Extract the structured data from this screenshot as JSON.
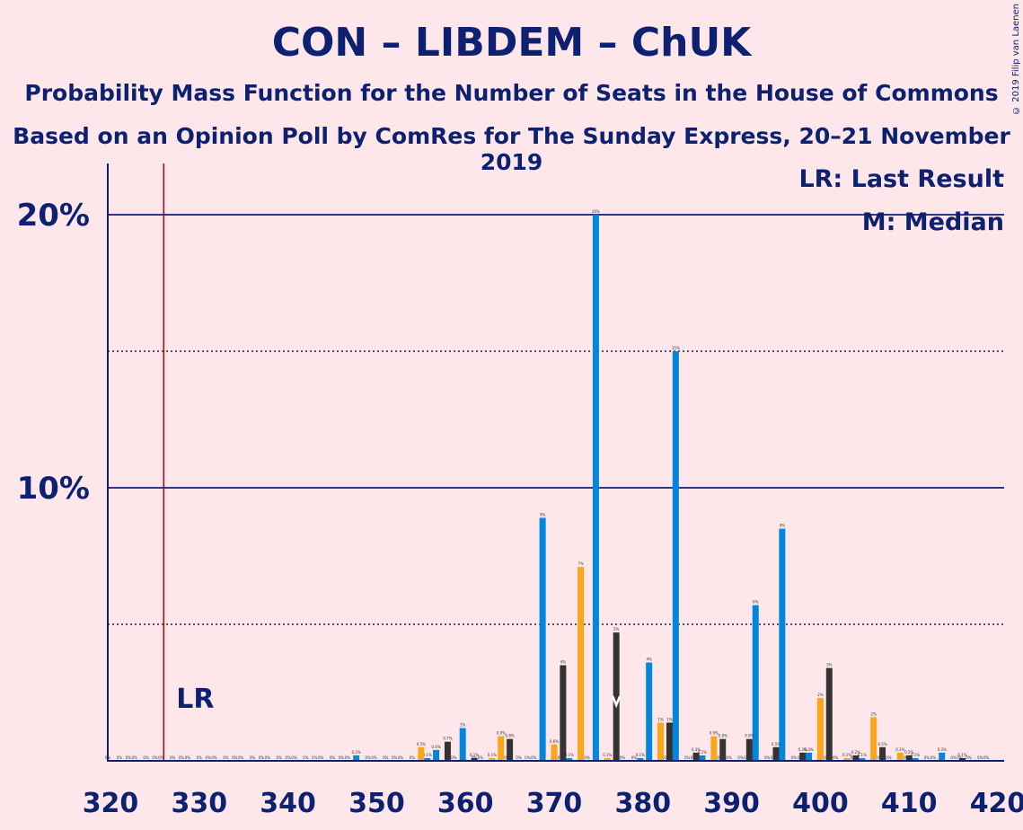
{
  "title": "CON – LIBDEM – ChUK",
  "subtitle": "Probability Mass Function for the Number of Seats in the House of Commons",
  "subtitle2": "Based on an Opinion Poll by ComRes for The Sunday Express, 20–21 November 2019",
  "copyright": "© 2019 Filip van Laenen",
  "legend": {
    "lr": "LR: Last Result",
    "median": "M: Median"
  },
  "colors": {
    "background": "#FDE7EA",
    "text": "#0D2170",
    "blue": "#0087DC",
    "orange": "#FAA61A",
    "dark": "#333333",
    "last_result": "#C00000"
  },
  "chart_data": {
    "type": "bar",
    "x_range": [
      320,
      420
    ],
    "y_range": [
      0,
      0.22
    ],
    "x_ticks": [
      320,
      330,
      340,
      350,
      360,
      370,
      380,
      390,
      400,
      410,
      420
    ],
    "y_ticks": [
      {
        "value": 0.1,
        "label": "10%"
      },
      {
        "value": 0.2,
        "label": "20%"
      }
    ],
    "dotted_gridlines": [
      0.05,
      0.15
    ],
    "last_result": {
      "seat": 326,
      "label": "LR"
    },
    "median": 377,
    "series": [
      {
        "color": "blue",
        "values": [
          [
            320,
            0
          ],
          [
            323,
            0
          ],
          [
            326,
            0
          ],
          [
            329,
            0
          ],
          [
            332,
            0
          ],
          [
            335,
            0
          ],
          [
            338,
            0
          ],
          [
            341,
            0
          ],
          [
            344,
            0
          ],
          [
            347,
            0
          ],
          [
            348,
            0.002
          ],
          [
            350,
            0
          ],
          [
            353,
            0
          ],
          [
            356,
            0.001
          ],
          [
            357,
            0.004
          ],
          [
            359,
            0
          ],
          [
            360,
            0.012
          ],
          [
            362,
            0
          ],
          [
            365,
            0
          ],
          [
            368,
            0
          ],
          [
            369,
            0.089
          ],
          [
            371,
            0
          ],
          [
            372,
            0.001
          ],
          [
            374,
            0
          ],
          [
            375,
            0.2
          ],
          [
            378,
            0
          ],
          [
            380,
            0.001
          ],
          [
            381,
            0.036
          ],
          [
            383,
            0
          ],
          [
            384,
            0.15
          ],
          [
            386,
            0
          ],
          [
            387,
            0.002
          ],
          [
            389,
            0
          ],
          [
            390,
            0
          ],
          [
            392,
            0
          ],
          [
            393,
            0.057
          ],
          [
            395,
            0
          ],
          [
            396,
            0.085
          ],
          [
            398,
            0
          ],
          [
            399,
            0.003
          ],
          [
            401,
            0
          ],
          [
            402,
            0
          ],
          [
            404,
            0
          ],
          [
            405,
            0.001
          ],
          [
            407,
            0
          ],
          [
            408,
            0
          ],
          [
            410,
            0
          ],
          [
            411,
            0.001
          ],
          [
            413,
            0
          ],
          [
            414,
            0.003
          ],
          [
            416,
            0
          ],
          [
            417,
            0
          ],
          [
            419,
            0
          ]
        ]
      },
      {
        "color": "orange",
        "values": [
          [
            321,
            0
          ],
          [
            324,
            0
          ],
          [
            327,
            0
          ],
          [
            330,
            0
          ],
          [
            333,
            0
          ],
          [
            336,
            0
          ],
          [
            339,
            0
          ],
          [
            342,
            0
          ],
          [
            345,
            0
          ],
          [
            349,
            0
          ],
          [
            351,
            0
          ],
          [
            354,
            0
          ],
          [
            355,
            0.005
          ],
          [
            358,
            0
          ],
          [
            361,
            0
          ],
          [
            363,
            0.001
          ],
          [
            364,
            0.009
          ],
          [
            366,
            0
          ],
          [
            367,
            0
          ],
          [
            370,
            0.006
          ],
          [
            373,
            0.071
          ],
          [
            376,
            0.001
          ],
          [
            379,
            0
          ],
          [
            382,
            0.014
          ],
          [
            385,
            0
          ],
          [
            388,
            0.009
          ],
          [
            391,
            0
          ],
          [
            394,
            0
          ],
          [
            397,
            0
          ],
          [
            400,
            0.023
          ],
          [
            403,
            0.001
          ],
          [
            406,
            0.016
          ],
          [
            409,
            0.003
          ],
          [
            412,
            0
          ],
          [
            415,
            0
          ],
          [
            418,
            0
          ]
        ]
      },
      {
        "color": "dark",
        "values": [
          [
            322,
            0
          ],
          [
            325,
            0
          ],
          [
            328,
            0
          ],
          [
            331,
            0
          ],
          [
            334,
            0
          ],
          [
            337,
            0
          ],
          [
            340,
            0
          ],
          [
            343,
            0
          ],
          [
            346,
            0
          ],
          [
            352,
            0
          ],
          [
            358,
            0.007
          ],
          [
            361,
            0.001
          ],
          [
            365,
            0.008
          ],
          [
            371,
            0.035
          ],
          [
            377,
            0.047
          ],
          [
            383,
            0.014
          ],
          [
            386,
            0.003
          ],
          [
            389,
            0.008
          ],
          [
            392,
            0.008
          ],
          [
            395,
            0.005
          ],
          [
            398,
            0.003
          ],
          [
            401,
            0.034
          ],
          [
            404,
            0.002
          ],
          [
            407,
            0.005
          ],
          [
            410,
            0.002
          ],
          [
            416,
            0.001
          ]
        ]
      }
    ]
  }
}
